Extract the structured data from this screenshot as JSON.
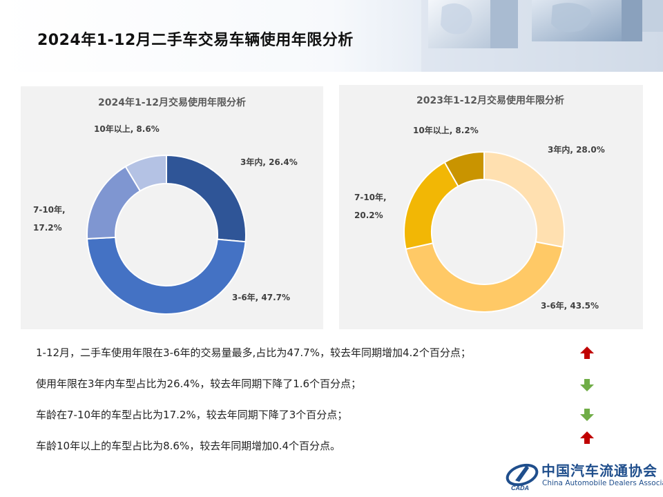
{
  "page": {
    "title": "2024年1-12月二手车交易车辆使用年限分析"
  },
  "colors": {
    "blue_3": "#2f5597",
    "blue_36": "#4472c4",
    "blue_710": "#7f96d1",
    "blue_10": "#b4c2e4",
    "gold_3": "#ffe0b0",
    "gold_36": "#ffc966",
    "gold_710": "#f2b705",
    "gold_10": "#c99400",
    "arrow_up": "#c00000",
    "arrow_down": "#70ad47",
    "brand": "#1f4e8c"
  },
  "chart_data": [
    {
      "type": "pie",
      "donut": true,
      "title": "2024年1-12月交易使用年限分析",
      "categories": [
        "3年内",
        "3-6年",
        "7-10年",
        "10年以上"
      ],
      "values": [
        26.4,
        47.7,
        17.2,
        8.6
      ],
      "labels": [
        "3年内, 26.4%",
        "3-6年, 47.7%",
        [
          "7-10年,",
          "17.2%"
        ],
        "10年以上, 8.6%"
      ],
      "colors": [
        "#2f5597",
        "#4472c4",
        "#7f96d1",
        "#b4c2e4"
      ]
    },
    {
      "type": "pie",
      "donut": true,
      "title": "2023年1-12月交易使用年限分析",
      "categories": [
        "3年内",
        "3-6年",
        "7-10年",
        "10年以上"
      ],
      "values": [
        28.0,
        43.5,
        20.2,
        8.2
      ],
      "labels": [
        "3年内, 28.0%",
        "3-6年, 43.5%",
        [
          "7-10年,",
          "20.2%"
        ],
        "10年以上, 8.2%"
      ],
      "colors": [
        "#ffe0b0",
        "#ffc966",
        "#f2b705",
        "#c99400"
      ]
    }
  ],
  "findings": [
    {
      "text": "1-12月，二手车使用年限在3-6年的交易量最多,占比为47.7%，较去年同期增加4.2个百分点；",
      "trend": "up"
    },
    {
      "text": "使用年限在3年内车型占比为26.4%，较去年同期下降了1.6个百分点；",
      "trend": "down"
    },
    {
      "text": "车龄在7-10年的车型占比为17.2%，较去年同期下降了3个百分点；",
      "trend": "down"
    },
    {
      "text": "车龄10年以上的车型占比为8.6%，较去年同期增加0.4个百分点。",
      "trend": "up"
    }
  ],
  "footer": {
    "logo_cn": "中国汽车流通协会",
    "logo_en": "China Automobile Dealers Association",
    "logo_mark": "CADA"
  }
}
